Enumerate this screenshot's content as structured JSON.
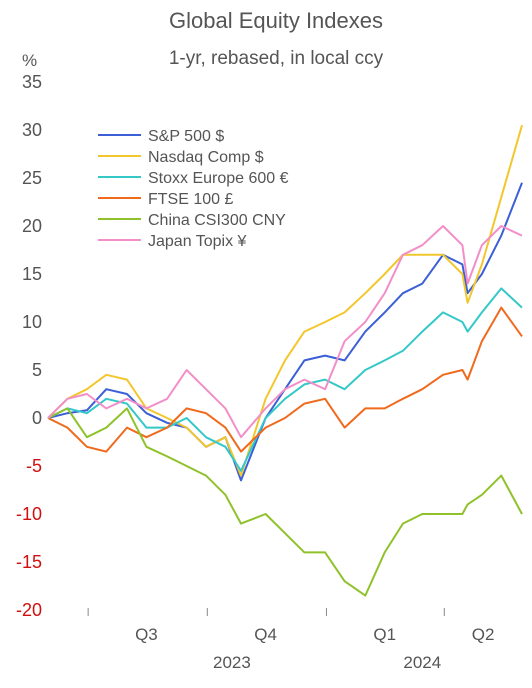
{
  "chart_data": {
    "type": "line",
    "title": "Global Equity Indexes",
    "subtitle": "1-yr, rebased, in local ccy",
    "ylabel": "%",
    "ylim": [
      -20,
      35
    ],
    "yticks": [
      35,
      30,
      25,
      20,
      15,
      10,
      5,
      0,
      -5,
      -10,
      -15,
      -20
    ],
    "negative_tick_color": "#d01010",
    "x_range": [
      "2023-05-31",
      "2024-05-31"
    ],
    "quarter_labels": [
      {
        "label": "Q3",
        "date": "2023-08-15"
      },
      {
        "label": "Q4",
        "date": "2023-11-15"
      },
      {
        "label": "Q1",
        "date": "2024-02-15"
      },
      {
        "label": "Q2",
        "date": "2024-05-01"
      }
    ],
    "quarter_ticks": [
      "2023-07-01",
      "2023-10-01",
      "2024-01-01",
      "2024-04-01"
    ],
    "year_labels": [
      {
        "label": "2023",
        "date": "2023-10-20"
      },
      {
        "label": "2024",
        "date": "2024-03-15"
      }
    ],
    "legend_position": "top-left",
    "grid": false,
    "series": [
      {
        "name": "S&P 500 $",
        "color": "#3b5fd6",
        "points": [
          [
            "2023-05-31",
            0
          ],
          [
            "2023-06-15",
            0.5
          ],
          [
            "2023-06-30",
            0.8
          ],
          [
            "2023-07-15",
            3
          ],
          [
            "2023-07-31",
            2.5
          ],
          [
            "2023-08-15",
            0.5
          ],
          [
            "2023-08-31",
            -0.5
          ],
          [
            "2023-09-15",
            -1
          ],
          [
            "2023-09-30",
            -3
          ],
          [
            "2023-10-15",
            -2
          ],
          [
            "2023-10-27",
            -6.5
          ],
          [
            "2023-11-15",
            0
          ],
          [
            "2023-11-30",
            3
          ],
          [
            "2023-12-15",
            6
          ],
          [
            "2023-12-31",
            6.5
          ],
          [
            "2024-01-15",
            6
          ],
          [
            "2024-01-31",
            9
          ],
          [
            "2024-02-15",
            11
          ],
          [
            "2024-02-29",
            13
          ],
          [
            "2024-03-15",
            14
          ],
          [
            "2024-03-31",
            17
          ],
          [
            "2024-04-15",
            16
          ],
          [
            "2024-04-19",
            13
          ],
          [
            "2024-04-30",
            15
          ],
          [
            "2024-05-15",
            19
          ],
          [
            "2024-05-31",
            24.5
          ]
        ]
      },
      {
        "name": "Nasdaq Comp $",
        "color": "#f2c72e",
        "points": [
          [
            "2023-05-31",
            0
          ],
          [
            "2023-06-15",
            2
          ],
          [
            "2023-06-30",
            3
          ],
          [
            "2023-07-15",
            4.5
          ],
          [
            "2023-07-31",
            4
          ],
          [
            "2023-08-15",
            1
          ],
          [
            "2023-08-31",
            0
          ],
          [
            "2023-09-15",
            -1
          ],
          [
            "2023-09-30",
            -3
          ],
          [
            "2023-10-15",
            -2
          ],
          [
            "2023-10-27",
            -6
          ],
          [
            "2023-11-15",
            2
          ],
          [
            "2023-11-30",
            6
          ],
          [
            "2023-12-15",
            9
          ],
          [
            "2023-12-31",
            10
          ],
          [
            "2024-01-15",
            11
          ],
          [
            "2024-01-31",
            13
          ],
          [
            "2024-02-15",
            15
          ],
          [
            "2024-02-29",
            17
          ],
          [
            "2024-03-15",
            17
          ],
          [
            "2024-03-31",
            17
          ],
          [
            "2024-04-15",
            15
          ],
          [
            "2024-04-19",
            12
          ],
          [
            "2024-04-30",
            16
          ],
          [
            "2024-05-15",
            23
          ],
          [
            "2024-05-31",
            30.5
          ]
        ]
      },
      {
        "name": "Stoxx Europe 600 €",
        "color": "#35c8c8",
        "points": [
          [
            "2023-05-31",
            0
          ],
          [
            "2023-06-15",
            1
          ],
          [
            "2023-06-30",
            0.5
          ],
          [
            "2023-07-15",
            2
          ],
          [
            "2023-07-31",
            1.5
          ],
          [
            "2023-08-15",
            -1
          ],
          [
            "2023-08-31",
            -1
          ],
          [
            "2023-09-15",
            0
          ],
          [
            "2023-09-30",
            -2
          ],
          [
            "2023-10-15",
            -3
          ],
          [
            "2023-10-27",
            -5.5
          ],
          [
            "2023-11-15",
            0
          ],
          [
            "2023-11-30",
            2
          ],
          [
            "2023-12-15",
            3.5
          ],
          [
            "2023-12-31",
            4
          ],
          [
            "2024-01-15",
            3
          ],
          [
            "2024-01-31",
            5
          ],
          [
            "2024-02-15",
            6
          ],
          [
            "2024-02-29",
            7
          ],
          [
            "2024-03-15",
            9
          ],
          [
            "2024-03-31",
            11
          ],
          [
            "2024-04-15",
            10
          ],
          [
            "2024-04-19",
            9
          ],
          [
            "2024-04-30",
            11
          ],
          [
            "2024-05-15",
            13.5
          ],
          [
            "2024-05-31",
            11.5
          ]
        ]
      },
      {
        "name": "FTSE 100 £",
        "color": "#f06a1e",
        "points": [
          [
            "2023-05-31",
            0
          ],
          [
            "2023-06-15",
            -1
          ],
          [
            "2023-06-30",
            -3
          ],
          [
            "2023-07-15",
            -3.5
          ],
          [
            "2023-07-31",
            -1
          ],
          [
            "2023-08-15",
            -2
          ],
          [
            "2023-08-31",
            -1
          ],
          [
            "2023-09-15",
            1
          ],
          [
            "2023-09-30",
            0.5
          ],
          [
            "2023-10-15",
            -1
          ],
          [
            "2023-10-27",
            -3.5
          ],
          [
            "2023-11-15",
            -1
          ],
          [
            "2023-11-30",
            0
          ],
          [
            "2023-12-15",
            1.5
          ],
          [
            "2023-12-31",
            2
          ],
          [
            "2024-01-15",
            -1
          ],
          [
            "2024-01-31",
            1
          ],
          [
            "2024-02-15",
            1
          ],
          [
            "2024-02-29",
            2
          ],
          [
            "2024-03-15",
            3
          ],
          [
            "2024-03-31",
            4.5
          ],
          [
            "2024-04-15",
            5
          ],
          [
            "2024-04-19",
            4
          ],
          [
            "2024-04-30",
            8
          ],
          [
            "2024-05-15",
            11.5
          ],
          [
            "2024-05-31",
            8.5
          ]
        ]
      },
      {
        "name": "China CSI300 CNY",
        "color": "#8fc22a",
        "points": [
          [
            "2023-05-31",
            0
          ],
          [
            "2023-06-15",
            1
          ],
          [
            "2023-06-30",
            -2
          ],
          [
            "2023-07-15",
            -1
          ],
          [
            "2023-07-31",
            1
          ],
          [
            "2023-08-15",
            -3
          ],
          [
            "2023-08-31",
            -4
          ],
          [
            "2023-09-15",
            -5
          ],
          [
            "2023-09-30",
            -6
          ],
          [
            "2023-10-15",
            -8
          ],
          [
            "2023-10-27",
            -11
          ],
          [
            "2023-11-15",
            -10
          ],
          [
            "2023-11-30",
            -12
          ],
          [
            "2023-12-15",
            -14
          ],
          [
            "2023-12-31",
            -14
          ],
          [
            "2024-01-15",
            -17
          ],
          [
            "2024-01-31",
            -18.5
          ],
          [
            "2024-02-15",
            -14
          ],
          [
            "2024-02-29",
            -11
          ],
          [
            "2024-03-15",
            -10
          ],
          [
            "2024-03-31",
            -10
          ],
          [
            "2024-04-15",
            -10
          ],
          [
            "2024-04-19",
            -9
          ],
          [
            "2024-04-30",
            -8
          ],
          [
            "2024-05-15",
            -6
          ],
          [
            "2024-05-31",
            -10
          ]
        ]
      },
      {
        "name": "Japan Topix ¥",
        "color": "#f28fc8",
        "points": [
          [
            "2023-05-31",
            0
          ],
          [
            "2023-06-15",
            2
          ],
          [
            "2023-06-30",
            2.5
          ],
          [
            "2023-07-15",
            1
          ],
          [
            "2023-07-31",
            2
          ],
          [
            "2023-08-15",
            1
          ],
          [
            "2023-08-31",
            2
          ],
          [
            "2023-09-15",
            5
          ],
          [
            "2023-09-30",
            3
          ],
          [
            "2023-10-15",
            1
          ],
          [
            "2023-10-27",
            -2
          ],
          [
            "2023-11-15",
            1
          ],
          [
            "2023-11-30",
            3
          ],
          [
            "2023-12-15",
            4
          ],
          [
            "2023-12-31",
            3
          ],
          [
            "2024-01-15",
            8
          ],
          [
            "2024-01-31",
            10
          ],
          [
            "2024-02-15",
            13
          ],
          [
            "2024-02-29",
            17
          ],
          [
            "2024-03-15",
            18
          ],
          [
            "2024-03-31",
            20
          ],
          [
            "2024-04-15",
            18
          ],
          [
            "2024-04-19",
            14
          ],
          [
            "2024-04-30",
            18
          ],
          [
            "2024-05-15",
            20
          ],
          [
            "2024-05-31",
            19
          ]
        ]
      }
    ]
  }
}
